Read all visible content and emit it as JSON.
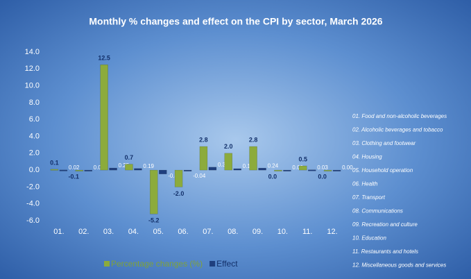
{
  "chart_data": {
    "type": "bar",
    "title": "Monthly % changes and effect on the CPI by sector, March 2026",
    "categories": [
      "01.",
      "02.",
      "03.",
      "04.",
      "05.",
      "06.",
      "07.",
      "08.",
      "09.",
      "10.",
      "11.",
      "12."
    ],
    "series": [
      {
        "name": "Percentage changes (%)",
        "color": "#8cab3c",
        "values": [
          0.1,
          -0.1,
          12.5,
          0.7,
          -5.2,
          -2.0,
          2.8,
          2.0,
          2.8,
          0.0,
          0.5,
          0.0
        ],
        "value_labels": [
          "0.1",
          "-0.1",
          "12.5",
          "0.7",
          "-5.2",
          "-2.0",
          "2.8",
          "2.0",
          "2.8",
          "0.0",
          "0.5",
          "0.0"
        ]
      },
      {
        "name": "Effect",
        "color": "#1f3f7e",
        "values": [
          0.02,
          0.0,
          0.25,
          0.19,
          -0.46,
          -0.04,
          0.35,
          0.17,
          0.24,
          0.0,
          0.03,
          0.0
        ],
        "value_labels": [
          "0.02",
          "0.00",
          "0.25",
          "0.19",
          "-0.46",
          "-0.04",
          "0.35",
          "0.17",
          "0.24",
          "0.00",
          "0.03",
          "0.00"
        ]
      }
    ],
    "ylim": [
      -6,
      14
    ],
    "yticks": [
      {
        "value": -6,
        "label": "-6.0"
      },
      {
        "value": -4,
        "label": "-4.0"
      },
      {
        "value": -2,
        "label": "-2.0"
      },
      {
        "value": 0,
        "label": "0.0"
      },
      {
        "value": 2,
        "label": "2.0"
      },
      {
        "value": 4,
        "label": "4.0"
      },
      {
        "value": 6,
        "label": "6.0"
      },
      {
        "value": 8,
        "label": "8.0"
      },
      {
        "value": 10,
        "label": "10.0"
      },
      {
        "value": 12,
        "label": "12.0"
      },
      {
        "value": 14,
        "label": "14.0"
      }
    ],
    "grid": false,
    "category_notes": [
      "01. Food and non-alcoholic beverages",
      "02. Alcoholic beverages and tobacco",
      "03. Clothing and footwear",
      "04. Housing",
      "05. Household operation",
      "06. Health",
      "07. Transport",
      "08. Communications",
      "09. Recreation and culture",
      "10. Education",
      "11. Restaurants and hotels",
      "12. Miscellaneous goods and services"
    ]
  }
}
